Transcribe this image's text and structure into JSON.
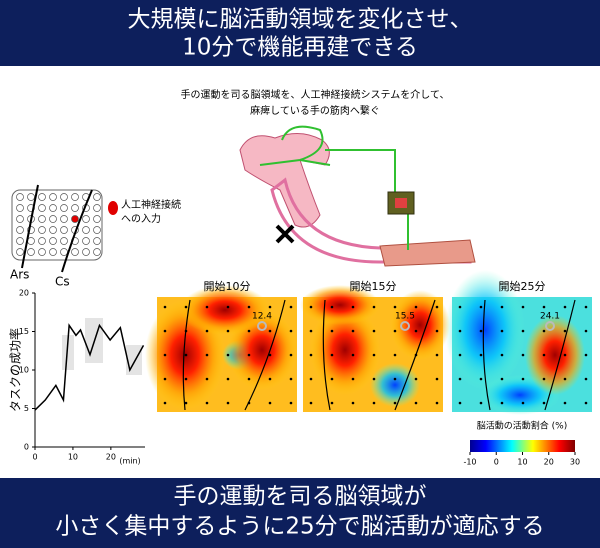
{
  "header": {
    "title_lines": [
      "大規模に脳活動領域を変化させ、",
      "10分で機能再建できる"
    ]
  },
  "diagram": {
    "caption_lines": [
      "手の運動を司る脳領域を、人工神経接続システムを介して、",
      "麻痺している手の筋肉へ繋ぐ"
    ],
    "electrode_label_lines": [
      "人工神経接続",
      "への入力"
    ],
    "sulcus_labels": [
      "Ars",
      "Cs"
    ]
  },
  "chart_data": {
    "type": "line",
    "ylabel": "タスクの成功率",
    "xlabel": "(min)",
    "x": [
      0,
      2.7,
      5.5,
      7.5,
      9,
      10.8,
      12,
      14.5,
      17,
      19.8,
      22.5,
      25,
      28.6
    ],
    "values": [
      4.8,
      6.1,
      8,
      6.1,
      15.8,
      14.5,
      15.2,
      12,
      15.8,
      13.9,
      15.5,
      10,
      13.2
    ],
    "color": "#000000",
    "xlim": [
      0,
      29
    ],
    "xticks": [
      0,
      10,
      20
    ],
    "ylim": [
      0,
      20
    ],
    "yticks": [
      0,
      5,
      10,
      15,
      20
    ]
  },
  "heatmaps": {
    "panels": [
      {
        "title": "開始10分",
        "value": "12.4"
      },
      {
        "title": "開始15分",
        "value": "15.5"
      },
      {
        "title": "開始25分",
        "value": "24.1"
      }
    ],
    "colorbar": {
      "label": "脳活動の活動割合 (%)",
      "lim": [
        -10,
        30
      ],
      "ticks": [
        -10,
        0,
        10,
        20,
        30
      ]
    }
  },
  "footer": {
    "lines": [
      "手の運動を司る脳領域が",
      "小さく集中するように25分で脳活動が適応する"
    ]
  }
}
